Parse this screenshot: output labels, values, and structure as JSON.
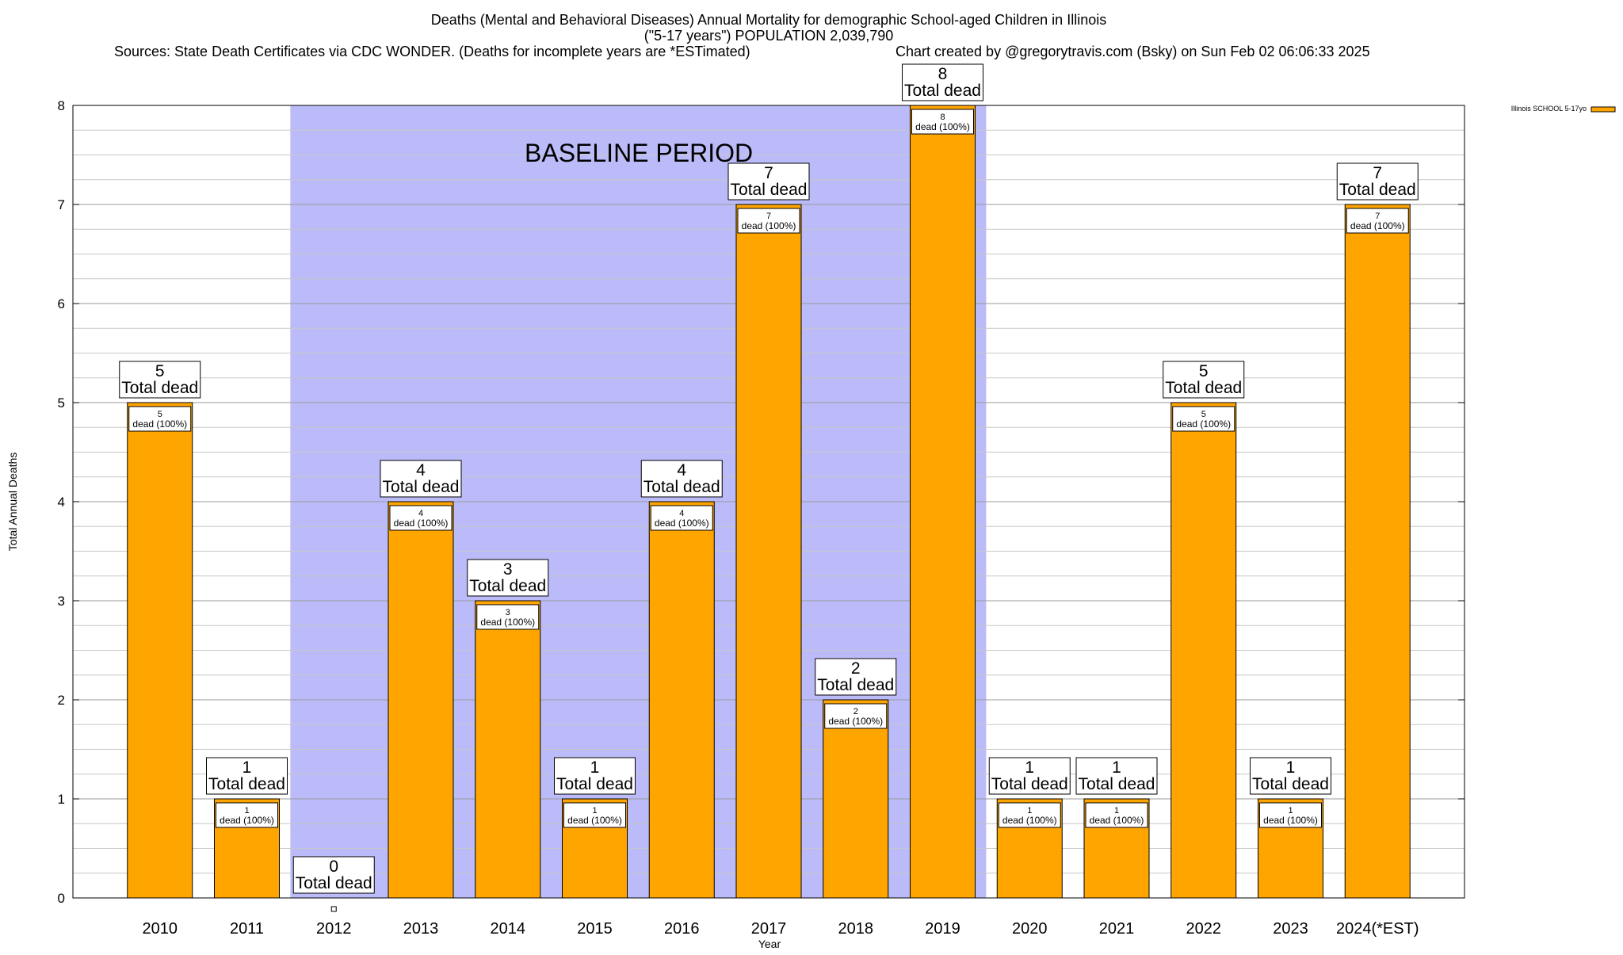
{
  "chart_data": {
    "type": "bar",
    "title_lines": [
      "Deaths (Mental and Behavioral Diseases) Annual Mortality for demographic School-aged Children in Illinois",
      "(\"5-17 years\") POPULATION 2,039,790"
    ],
    "sources": "Sources: State Death Certificates via CDC WONDER. (Deaths for incomplete years are *ESTimated)",
    "credit": "Chart created by @gregorytravis.com (Bsky) on Sun Feb 02 06:06:33 2025",
    "xlabel": "Year",
    "ylabel": "Total Annual Deaths",
    "ylim": [
      0,
      8
    ],
    "yticks": [
      "0",
      "1",
      "2",
      "3",
      "4",
      "5",
      "6",
      "7",
      "8"
    ],
    "categories": [
      "2010",
      "2011",
      "2012",
      "2013",
      "2014",
      "2015",
      "2016",
      "2017",
      "2018",
      "2019",
      "2020",
      "2021",
      "2022",
      "2023",
      "2024(*EST)"
    ],
    "series": [
      {
        "name": "Illinois SCHOOL 5-17yo",
        "values": [
          5,
          1,
          0,
          4,
          3,
          1,
          4,
          7,
          2,
          8,
          1,
          1,
          5,
          1,
          7
        ]
      }
    ],
    "total_label": "Total dead",
    "inner_label": "dead (100%)",
    "baseline": {
      "label": "BASELINE PERIOD",
      "from": "2012",
      "to": "2019"
    },
    "colors": {
      "bar": "#ffa500",
      "baseline": "#bbbbf9",
      "grid": "#c8c8c8"
    },
    "legend_position": "top-right",
    "grid": true
  }
}
